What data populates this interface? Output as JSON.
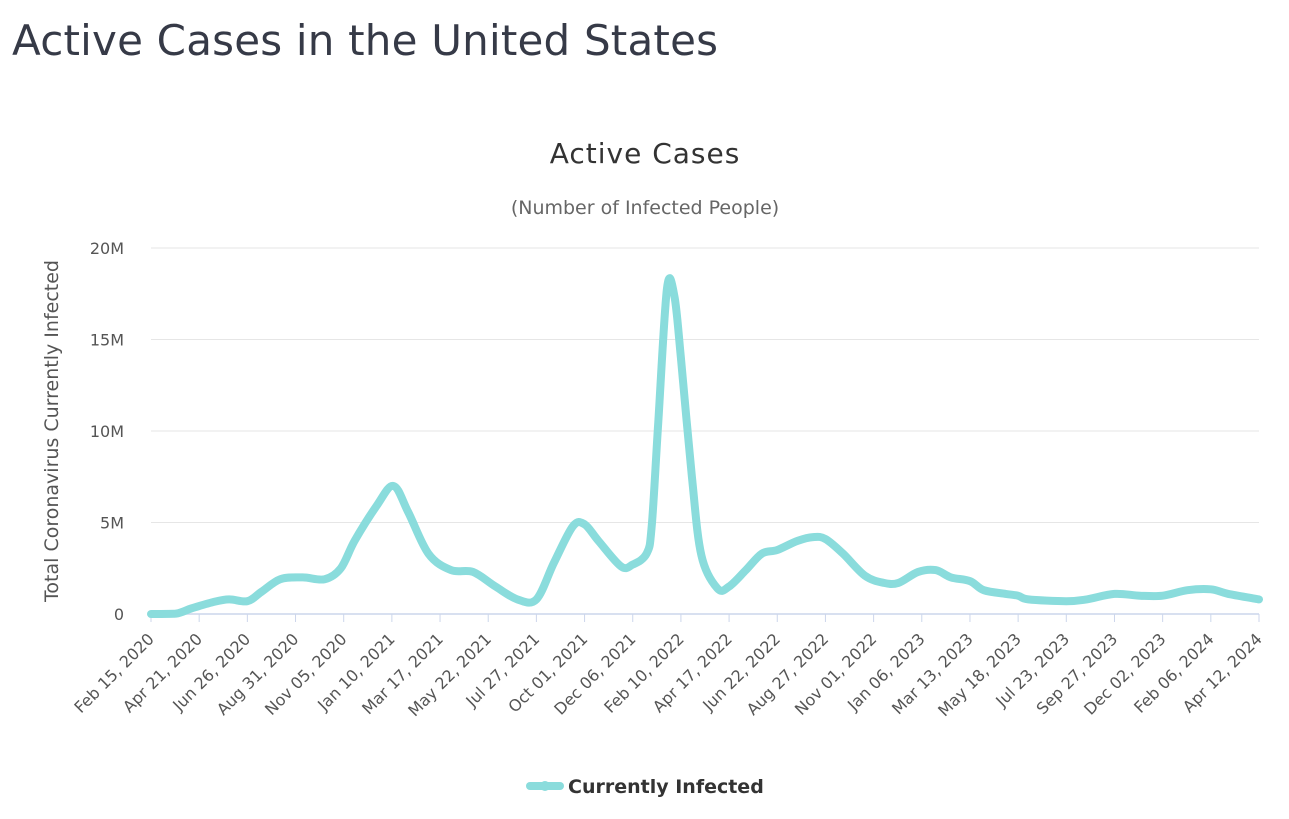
{
  "page": {
    "title": "Active Cases in the United States"
  },
  "chart_data": {
    "type": "line",
    "title": "Active Cases",
    "subtitle": "(Number of Infected People)",
    "xlabel": "",
    "ylabel": "Total Coronavirus Currently Infected",
    "ylim": [
      0,
      20000000
    ],
    "yticks": [
      0,
      5000000,
      10000000,
      15000000,
      20000000
    ],
    "ytick_labels": [
      "0",
      "5M",
      "10M",
      "15M",
      "20M"
    ],
    "xticks": [
      "Feb 15, 2020",
      "Apr 21, 2020",
      "Jun 26, 2020",
      "Aug 31, 2020",
      "Nov 05, 2020",
      "Jan 10, 2021",
      "Mar 17, 2021",
      "May 22, 2021",
      "Jul 27, 2021",
      "Oct 01, 2021",
      "Dec 06, 2021",
      "Feb 10, 2022",
      "Apr 17, 2022",
      "Jun 22, 2022",
      "Aug 27, 2022",
      "Nov 01, 2022",
      "Jan 06, 2023",
      "Mar 13, 2023",
      "May 18, 2023",
      "Jul 23, 2023",
      "Sep 27, 2023",
      "Dec 02, 2023",
      "Feb 06, 2024",
      "Apr 12, 2024"
    ],
    "grid": true,
    "legend": "bottom-center",
    "color": "#8adcdc",
    "series": [
      {
        "name": "Currently Infected",
        "points": [
          [
            "2020-02-15",
            0
          ],
          [
            "2020-03-20",
            20000
          ],
          [
            "2020-04-10",
            300000
          ],
          [
            "2020-05-10",
            650000
          ],
          [
            "2020-06-01",
            800000
          ],
          [
            "2020-06-26",
            700000
          ],
          [
            "2020-07-15",
            1200000
          ],
          [
            "2020-08-10",
            1900000
          ],
          [
            "2020-09-10",
            2000000
          ],
          [
            "2020-10-10",
            1900000
          ],
          [
            "2020-11-01",
            2500000
          ],
          [
            "2020-11-20",
            4000000
          ],
          [
            "2020-12-20",
            5900000
          ],
          [
            "2021-01-12",
            7000000
          ],
          [
            "2021-02-01",
            5600000
          ],
          [
            "2021-03-01",
            3300000
          ],
          [
            "2021-04-01",
            2400000
          ],
          [
            "2021-05-01",
            2300000
          ],
          [
            "2021-06-01",
            1500000
          ],
          [
            "2021-07-01",
            800000
          ],
          [
            "2021-07-27",
            800000
          ],
          [
            "2021-08-20",
            2800000
          ],
          [
            "2021-09-15",
            4800000
          ],
          [
            "2021-10-01",
            4900000
          ],
          [
            "2021-10-20",
            4000000
          ],
          [
            "2021-11-20",
            2600000
          ],
          [
            "2021-12-06",
            2700000
          ],
          [
            "2021-12-25",
            3300000
          ],
          [
            "2022-01-01",
            4800000
          ],
          [
            "2022-01-10",
            10500000
          ],
          [
            "2022-01-22",
            17800000
          ],
          [
            "2022-02-01",
            17400000
          ],
          [
            "2022-02-10",
            14000000
          ],
          [
            "2022-02-25",
            7500000
          ],
          [
            "2022-03-10",
            3200000
          ],
          [
            "2022-04-01",
            1400000
          ],
          [
            "2022-04-17",
            1500000
          ],
          [
            "2022-05-10",
            2400000
          ],
          [
            "2022-06-01",
            3300000
          ],
          [
            "2022-06-22",
            3500000
          ],
          [
            "2022-07-20",
            4000000
          ],
          [
            "2022-08-10",
            4200000
          ],
          [
            "2022-08-27",
            4100000
          ],
          [
            "2022-09-20",
            3300000
          ],
          [
            "2022-10-20",
            2100000
          ],
          [
            "2022-11-15",
            1700000
          ],
          [
            "2022-12-05",
            1700000
          ],
          [
            "2023-01-01",
            2300000
          ],
          [
            "2023-01-25",
            2400000
          ],
          [
            "2023-02-15",
            2000000
          ],
          [
            "2023-03-13",
            1800000
          ],
          [
            "2023-04-01",
            1300000
          ],
          [
            "2023-05-01",
            1100000
          ],
          [
            "2023-05-18",
            1000000
          ],
          [
            "2023-06-01",
            800000
          ],
          [
            "2023-07-23",
            700000
          ],
          [
            "2023-08-20",
            800000
          ],
          [
            "2023-09-27",
            1100000
          ],
          [
            "2023-11-01",
            1000000
          ],
          [
            "2023-12-02",
            1000000
          ],
          [
            "2024-01-05",
            1300000
          ],
          [
            "2024-02-06",
            1350000
          ],
          [
            "2024-03-01",
            1100000
          ],
          [
            "2024-04-12",
            800000
          ]
        ]
      }
    ]
  }
}
